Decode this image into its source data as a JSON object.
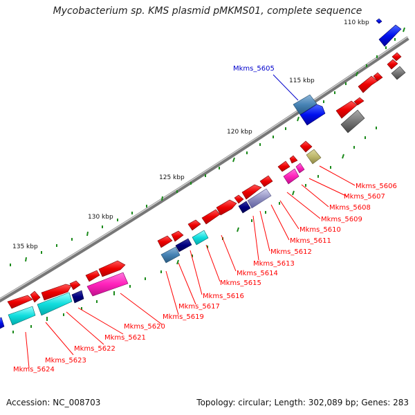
{
  "title": "Mycobacterium sp. KMS plasmid pMKMS01, complete sequence",
  "ruler_labels": [
    "110 kbp",
    "115 kbp",
    "120 kbp",
    "125 kbp",
    "130 kbp",
    "135 kbp"
  ],
  "genes": {
    "Mkms_5605": "Mkms_5605",
    "Mkms_5606": "Mkms_5606",
    "Mkms_5607": "Mkms_5607",
    "Mkms_5608": "Mkms_5608",
    "Mkms_5609": "Mkms_5609",
    "Mkms_5610": "Mkms_5610",
    "Mkms_5611": "Mkms_5611",
    "Mkms_5612": "Mkms_5612",
    "Mkms_5613": "Mkms_5613",
    "Mkms_5614": "Mkms_5614",
    "Mkms_5615": "Mkms_5615",
    "Mkms_5616": "Mkms_5616",
    "Mkms_5617": "Mkms_5617",
    "Mkms_5619": "Mkms_5619",
    "Mkms_5620": "Mkms_5620",
    "Mkms_5621": "Mkms_5621",
    "Mkms_5622": "Mkms_5622",
    "Mkms_5623": "Mkms_5623",
    "Mkms_5624": "Mkms_5624"
  },
  "footer": {
    "accession": "Accession: NC_008703",
    "summary": "Topology: circular; Length: 302,089 bp; Genes: 283"
  },
  "colors": {
    "forward_gene": "#ff0000",
    "reverse_cyan": "#00e5e5",
    "reverse_magenta": "#ff33cc",
    "reverse_blue": "#0000ff",
    "steel_blue": "#4682b4",
    "navy": "#000080",
    "gray": "#777777",
    "khaki": "#bdb76b",
    "label_red": "#ff0000",
    "label_blue": "#0000cc",
    "tick_green": "#008000",
    "backbone": "#999999"
  }
}
